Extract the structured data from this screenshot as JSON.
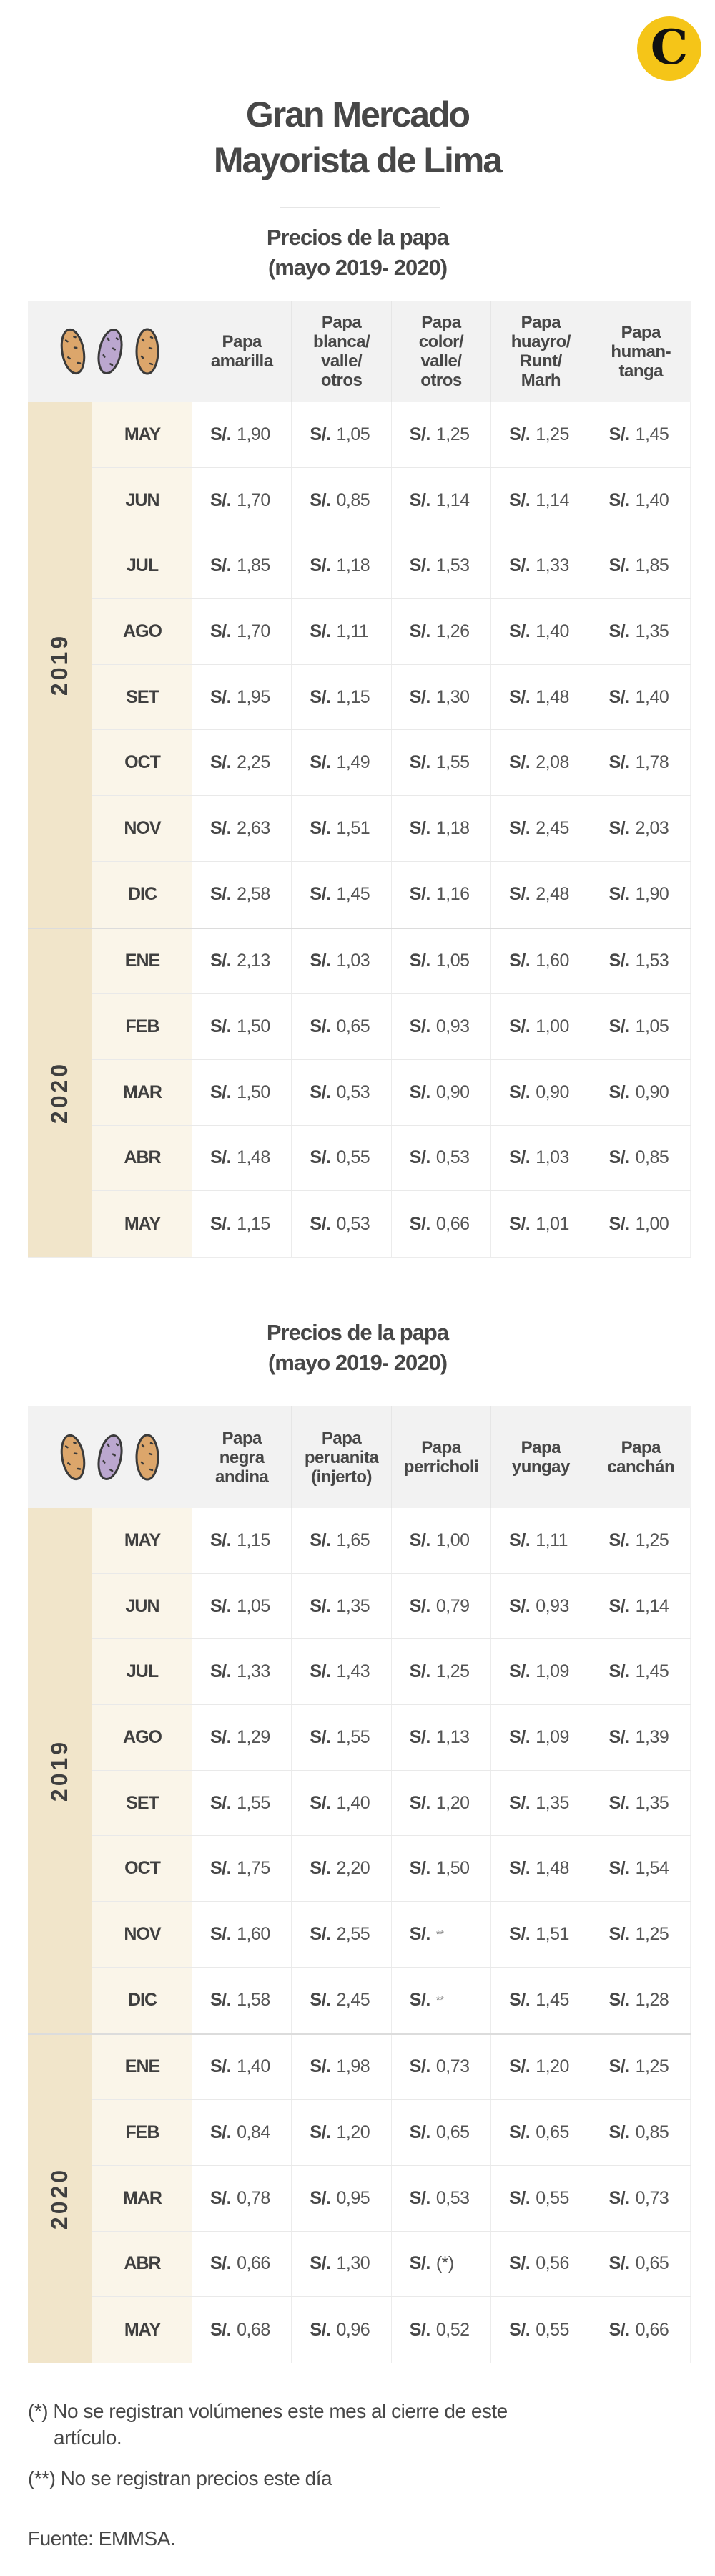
{
  "logo": {
    "letter": "C",
    "color": "#f5c518"
  },
  "title": [
    "Gran Mercado",
    "Mayorista de Lima"
  ],
  "currency": "S/.",
  "colors": {
    "year_band": "#f1e5ca",
    "month_band": "#faf5e9",
    "header": "#f2f2f2",
    "potato_yellow": "#dca66b",
    "potato_purple": "#bba7cf"
  },
  "tables": [
    {
      "subtitle": [
        "Precios de la papa",
        "(mayo 2019- 2020)"
      ],
      "headers": [
        "Papa\namarilla",
        "Papa\nblanca/\nvalle/\notros",
        "Papa\ncolor/\nvalle/\notros",
        "Papa\nhuayro/\nRunt/\nMarh",
        "Papa\nhuman-\ntanga"
      ],
      "years": [
        {
          "year": "2019",
          "rows": [
            {
              "month": "MAY",
              "values": [
                "1,90",
                "1,05",
                "1,25",
                "1,25",
                "1,45"
              ]
            },
            {
              "month": "JUN",
              "values": [
                "1,70",
                "0,85",
                "1,14",
                "1,14",
                "1,40"
              ]
            },
            {
              "month": "JUL",
              "values": [
                "1,85",
                "1,18",
                "1,53",
                "1,33",
                "1,85"
              ]
            },
            {
              "month": "AGO",
              "values": [
                "1,70",
                "1,11",
                "1,26",
                "1,40",
                "1,35"
              ]
            },
            {
              "month": "SET",
              "values": [
                "1,95",
                "1,15",
                "1,30",
                "1,48",
                "1,40"
              ]
            },
            {
              "month": "OCT",
              "values": [
                "2,25",
                "1,49",
                "1,55",
                "2,08",
                "1,78"
              ]
            },
            {
              "month": "NOV",
              "values": [
                "2,63",
                "1,51",
                "1,18",
                "2,45",
                "2,03"
              ]
            },
            {
              "month": "DIC",
              "values": [
                "2,58",
                "1,45",
                "1,16",
                "2,48",
                "1,90"
              ]
            }
          ]
        },
        {
          "year": "2020",
          "rows": [
            {
              "month": "ENE",
              "values": [
                "2,13",
                "1,03",
                "1,05",
                "1,60",
                "1,53"
              ]
            },
            {
              "month": "FEB",
              "values": [
                "1,50",
                "0,65",
                "0,93",
                "1,00",
                "1,05"
              ]
            },
            {
              "month": "MAR",
              "values": [
                "1,50",
                "0,53",
                "0,90",
                "0,90",
                "0,90"
              ]
            },
            {
              "month": "ABR",
              "values": [
                "1,48",
                "0,55",
                "0,53",
                "1,03",
                "0,85"
              ]
            },
            {
              "month": "MAY",
              "values": [
                "1,15",
                "0,53",
                "0,66",
                "1,01",
                "1,00"
              ]
            }
          ]
        }
      ]
    },
    {
      "subtitle": [
        "Precios de la papa",
        "(mayo 2019- 2020)"
      ],
      "headers": [
        "Papa\nnegra\nandina",
        "Papa\nperuanita\n(injerto)",
        "Papa\nperricholi",
        "Papa\nyungay",
        "Papa\ncanchán"
      ],
      "years": [
        {
          "year": "2019",
          "rows": [
            {
              "month": "MAY",
              "values": [
                "1,15",
                "1,65",
                "1,00",
                "1,11",
                "1,25"
              ]
            },
            {
              "month": "JUN",
              "values": [
                "1,05",
                "1,35",
                "0,79",
                "0,93",
                "1,14"
              ]
            },
            {
              "month": "JUL",
              "values": [
                "1,33",
                "1,43",
                "1,25",
                "1,09",
                "1,45"
              ]
            },
            {
              "month": "AGO",
              "values": [
                "1,29",
                "1,55",
                "1,13",
                "1,09",
                "1,39"
              ]
            },
            {
              "month": "SET",
              "values": [
                "1,55",
                "1,40",
                "1,20",
                "1,35",
                "1,35"
              ]
            },
            {
              "month": "OCT",
              "values": [
                "1,75",
                "2,20",
                "1,50",
                "1,48",
                "1,54"
              ]
            },
            {
              "month": "NOV",
              "values": [
                "1,60",
                "2,55",
                "**",
                "1,51",
                "1,25"
              ]
            },
            {
              "month": "DIC",
              "values": [
                "1,58",
                "2,45",
                "**",
                "1,45",
                "1,28"
              ]
            }
          ]
        },
        {
          "year": "2020",
          "rows": [
            {
              "month": "ENE",
              "values": [
                "1,40",
                "1,98",
                "0,73",
                "1,20",
                "1,25"
              ]
            },
            {
              "month": "FEB",
              "values": [
                "0,84",
                "1,20",
                "0,65",
                "0,65",
                "0,85"
              ]
            },
            {
              "month": "MAR",
              "values": [
                "0,78",
                "0,95",
                "0,53",
                "0,55",
                "0,73"
              ]
            },
            {
              "month": "ABR",
              "values": [
                "0,66",
                "1,30",
                "(*)",
                "0,56",
                "0,65"
              ]
            },
            {
              "month": "MAY",
              "values": [
                "0,68",
                "0,96",
                "0,52",
                "0,55",
                "0,66"
              ]
            }
          ]
        }
      ]
    }
  ],
  "footnotes": {
    "note1_mark": "(*)",
    "note1_text": "No se registran volúmenes este mes al cierre de este",
    "note1_cont": "artículo.",
    "note2_mark": "(**)",
    "note2_text": "No se registran precios este día",
    "source": "Fuente: EMMSA."
  }
}
